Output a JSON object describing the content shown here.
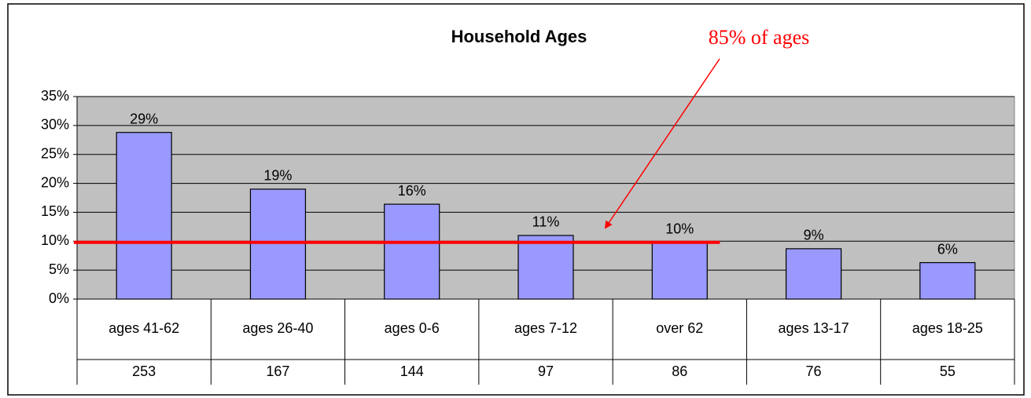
{
  "chart_data": {
    "type": "bar",
    "title": "Household Ages",
    "categories": [
      "ages 41-62",
      "ages 26-40",
      "ages 0-6",
      "ages 7-12",
      "over 62",
      "ages 13-17",
      "ages 18-25"
    ],
    "values": [
      28.8,
      19.0,
      16.4,
      11.0,
      9.8,
      8.7,
      6.3
    ],
    "value_labels": [
      "29%",
      "19%",
      "16%",
      "11%",
      "10%",
      "9%",
      "6%"
    ],
    "counts": [
      253,
      167,
      144,
      97,
      86,
      76,
      55
    ],
    "color": "#9999ff",
    "ylim": [
      0,
      35
    ],
    "yticks": [
      {
        "value": 0,
        "label": "0%"
      },
      {
        "value": 5,
        "label": "5%"
      },
      {
        "value": 10,
        "label": "10%"
      },
      {
        "value": 15,
        "label": "15%"
      },
      {
        "value": 20,
        "label": "20%"
      },
      {
        "value": 25,
        "label": "25%"
      },
      {
        "value": 30,
        "label": "30%"
      },
      {
        "value": 35,
        "label": "35%"
      }
    ],
    "grid": true,
    "annotation": {
      "text": "85% of ages",
      "color": "#ff0000",
      "line_value": 9.8
    }
  }
}
